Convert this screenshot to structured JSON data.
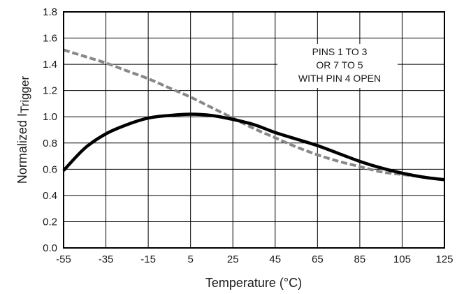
{
  "chart_data": {
    "type": "line",
    "title": "",
    "xlabel": "Temperature (°C)",
    "ylabel": "Normalized I",
    "ylabel_sub": "Trigger",
    "xlim": [
      -55,
      125
    ],
    "ylim": [
      0,
      1.8
    ],
    "x_ticks": [
      -55,
      -35,
      -15,
      5,
      25,
      45,
      65,
      85,
      105,
      125
    ],
    "x_tick_labels": [
      "-55",
      "-35",
      "-15",
      "5",
      "25",
      "45",
      "65",
      "85",
      "105",
      "125"
    ],
    "y_ticks": [
      0,
      0.2,
      0.4,
      0.6,
      0.8,
      1.0,
      1.2,
      1.4,
      1.6,
      1.8
    ],
    "y_tick_labels": [
      "0.0",
      "0.2",
      "0.4",
      "0.6",
      "0.8",
      "1.0",
      "1.2",
      "1.4",
      "1.6",
      "1.8"
    ],
    "grid": true,
    "series": [
      {
        "style": "solid",
        "color": "#000000",
        "x": [
          -55,
          -45,
          -35,
          -25,
          -15,
          -5,
          5,
          15,
          25,
          35,
          45,
          55,
          65,
          75,
          85,
          95,
          105,
          115,
          125
        ],
        "y": [
          0.59,
          0.76,
          0.87,
          0.94,
          0.99,
          1.01,
          1.02,
          1.01,
          0.98,
          0.94,
          0.88,
          0.83,
          0.78,
          0.72,
          0.66,
          0.61,
          0.57,
          0.54,
          0.52
        ]
      },
      {
        "style": "dashed",
        "color": "#888888",
        "x": [
          -55,
          -45,
          -35,
          -25,
          -15,
          -5,
          5,
          15,
          25,
          35,
          45,
          55,
          65,
          75,
          85,
          95,
          105,
          115,
          125
        ],
        "y": [
          1.51,
          1.46,
          1.41,
          1.35,
          1.29,
          1.22,
          1.15,
          1.07,
          0.99,
          0.91,
          0.84,
          0.77,
          0.71,
          0.66,
          0.62,
          0.58,
          0.56,
          0.54,
          0.52
        ]
      }
    ],
    "annotation": [
      "PINS 1 TO 3",
      "OR 7 TO 5",
      "WITH PIN 4 OPEN"
    ]
  }
}
